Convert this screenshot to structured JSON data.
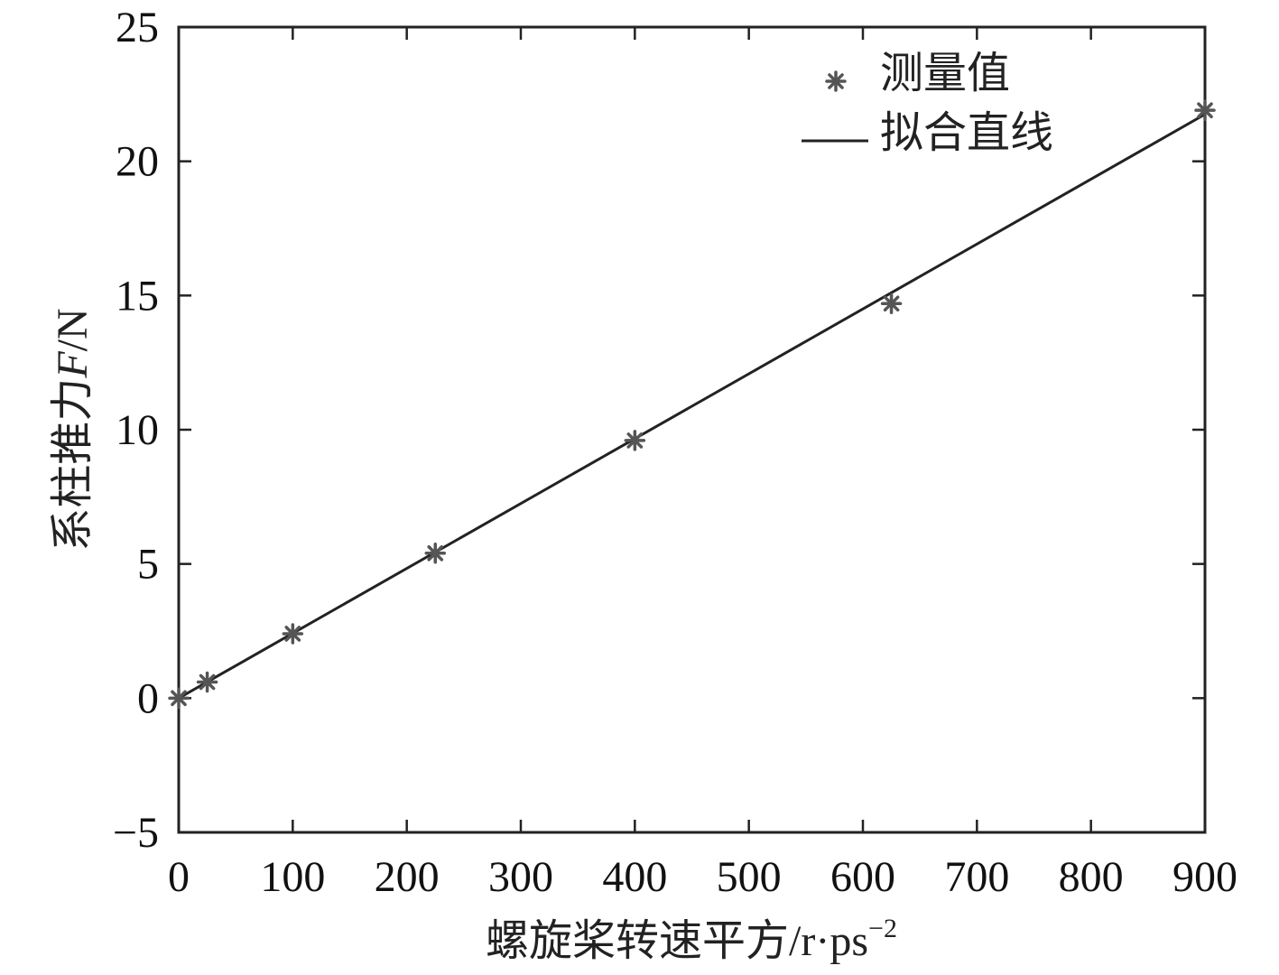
{
  "chart_data": {
    "type": "scatter",
    "title": "",
    "xlabel": "螺旋桨转速平方/r·ps",
    "xlabel_sup": "−2",
    "ylabel_prefix": "系柱推力",
    "ylabel_var": "F",
    "ylabel_unit": "/N",
    "xlim": [
      0,
      900
    ],
    "ylim": [
      -5,
      25
    ],
    "xticks": [
      0,
      100,
      200,
      300,
      400,
      500,
      600,
      700,
      800,
      900
    ],
    "yticks": [
      -5,
      0,
      5,
      10,
      15,
      20,
      25
    ],
    "ytick_labels": [
      "−5",
      "0",
      "5",
      "10",
      "15",
      "20",
      "25"
    ],
    "grid": false,
    "legend": "top-right",
    "series": [
      {
        "name": "测量值",
        "kind": "scatter",
        "marker": "asterisk",
        "color": "#555555",
        "x": [
          0,
          25,
          100,
          225,
          400,
          625,
          900
        ],
        "y": [
          0,
          0.6,
          2.4,
          5.4,
          9.6,
          14.7,
          21.9
        ]
      },
      {
        "name": "拟合直线",
        "kind": "line",
        "color": "#222222",
        "x": [
          0,
          900
        ],
        "y": [
          0,
          21.75
        ]
      }
    ]
  }
}
